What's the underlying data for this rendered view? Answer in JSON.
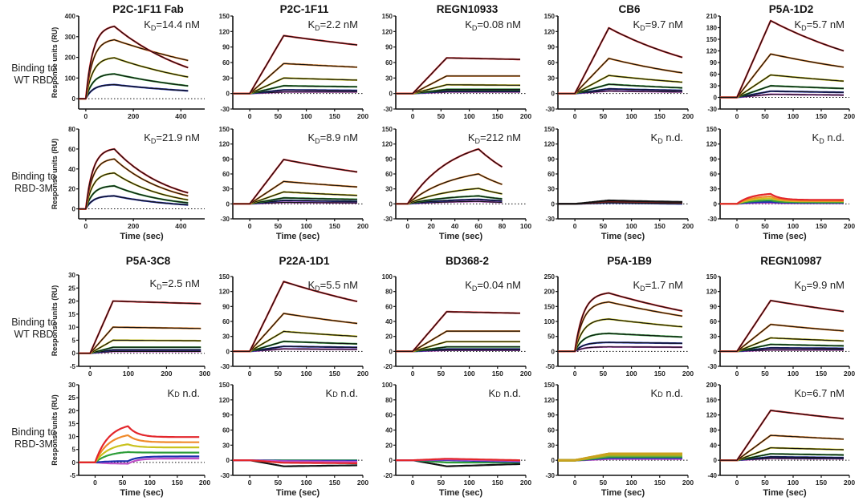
{
  "figure": {
    "row_labels": [
      {
        "lines": [
          "Binding to",
          "WT RBD"
        ]
      },
      {
        "lines": [
          "Binding to",
          "RBD-3M"
        ]
      },
      {
        "lines": [
          "Binding to",
          "WT RBD"
        ]
      },
      {
        "lines": [
          "Binding to",
          "RBD-3M"
        ]
      }
    ],
    "ylabel": "Response units (RU)",
    "xlabel": "Time (sec)",
    "kd_prefix": "K",
    "kd_subscript": "D",
    "series_colors": [
      "#e3262b",
      "#f08a2a",
      "#c9c21e",
      "#2e9e3a",
      "#1f2fb0",
      "#c050c8"
    ],
    "fit_color": "#111111"
  },
  "chart_data": [
    {
      "type": "line",
      "title": "P2C-1F11 Fab",
      "row": "WT RBD",
      "kd": "=14.4 nM",
      "xlim": [
        -30,
        500
      ],
      "ylim": [
        -50,
        400
      ],
      "xticks": [
        0,
        200,
        400
      ],
      "yticks": [
        0,
        100,
        200,
        300,
        400
      ],
      "assoc_end": 120,
      "end": 430,
      "shape": "exp",
      "kinetic": "fast",
      "peaks": [
        350,
        285,
        198,
        120,
        68
      ],
      "ends": [
        150,
        185,
        105,
        62,
        38
      ],
      "fit": true
    },
    {
      "type": "line",
      "title": "P2C-1F11",
      "row": "WT RBD",
      "kd": "=2.2 nM",
      "xlim": [
        -30,
        200
      ],
      "ylim": [
        -30,
        150
      ],
      "xticks": [
        0,
        50,
        100,
        150,
        200
      ],
      "yticks": [
        -30,
        0,
        30,
        60,
        90,
        120,
        150
      ],
      "assoc_end": 60,
      "end": 190,
      "shape": "linear",
      "peaks": [
        112,
        58,
        30,
        15,
        7,
        3
      ],
      "ends": [
        94,
        51,
        26,
        13,
        6,
        3
      ],
      "fit": true
    },
    {
      "type": "line",
      "title": "REGN10933",
      "row": "WT RBD",
      "kd": "=0.08 nM",
      "xlim": [
        -30,
        200
      ],
      "ylim": [
        -30,
        150
      ],
      "xticks": [
        0,
        50,
        100,
        150,
        200
      ],
      "yticks": [
        -30,
        0,
        30,
        60,
        90,
        120,
        150
      ],
      "assoc_end": 60,
      "end": 190,
      "shape": "linear",
      "peaks": [
        69,
        34,
        17,
        8,
        5,
        3
      ],
      "ends": [
        66,
        34,
        16,
        8,
        5,
        3
      ],
      "fit": true
    },
    {
      "type": "line",
      "title": "CB6",
      "row": "WT RBD",
      "kd": "=9.7 nM",
      "xlim": [
        -30,
        200
      ],
      "ylim": [
        -30,
        150
      ],
      "xticks": [
        0,
        50,
        100,
        150,
        200
      ],
      "yticks": [
        -30,
        0,
        30,
        60,
        90,
        120,
        150
      ],
      "assoc_end": 60,
      "end": 190,
      "shape": "linear",
      "peaks": [
        127,
        68,
        35,
        18,
        9,
        5
      ],
      "ends": [
        70,
        40,
        22,
        11,
        6,
        3
      ],
      "fit": true
    },
    {
      "type": "line",
      "title": "P5A-1D2",
      "row": "WT RBD",
      "kd": "=5.7 nM",
      "xlim": [
        -30,
        200
      ],
      "ylim": [
        -30,
        210
      ],
      "xticks": [
        0,
        50,
        100,
        150,
        200
      ],
      "yticks": [
        -30,
        0,
        30,
        60,
        90,
        120,
        150,
        180,
        210
      ],
      "assoc_end": 60,
      "end": 190,
      "shape": "linear",
      "peaks": [
        198,
        112,
        58,
        30,
        16,
        8
      ],
      "ends": [
        120,
        78,
        42,
        23,
        13,
        6
      ],
      "fit": true
    },
    {
      "type": "line",
      "title": "P2C-1F11 Fab",
      "row": "RBD-3M",
      "kd": "=21.9 nM",
      "xlim": [
        -30,
        500
      ],
      "ylim": [
        -10,
        80
      ],
      "xticks": [
        0,
        200,
        400
      ],
      "yticks": [
        0,
        20,
        40,
        60,
        80
      ],
      "assoc_end": 120,
      "end": 430,
      "shape": "exp",
      "kinetic": "fast",
      "peaks": [
        60,
        50,
        36,
        23,
        13
      ],
      "ends": [
        16,
        13,
        9,
        6,
        4
      ],
      "fit": true,
      "hide_title": true
    },
    {
      "type": "line",
      "title": "P2C-1F11",
      "row": "RBD-3M",
      "kd": "=8.9 nM",
      "xlim": [
        -30,
        200
      ],
      "ylim": [
        -30,
        150
      ],
      "xticks": [
        0,
        50,
        100,
        150,
        200
      ],
      "yticks": [
        -30,
        0,
        30,
        60,
        90,
        120,
        150
      ],
      "assoc_end": 60,
      "end": 190,
      "shape": "linear",
      "peaks": [
        89,
        45,
        24,
        12,
        7,
        3
      ],
      "ends": [
        64,
        34,
        17,
        9,
        5,
        2
      ],
      "fit": true,
      "hide_title": true
    },
    {
      "type": "line",
      "title": "REGN10933",
      "row": "RBD-3M",
      "kd": "=212 nM",
      "xlim": [
        -10,
        100
      ],
      "ylim": [
        -30,
        150
      ],
      "xticks": [
        0,
        20,
        40,
        60,
        80,
        100
      ],
      "yticks": [
        -30,
        0,
        30,
        60,
        90,
        120,
        150
      ],
      "assoc_end": 60,
      "end": 80,
      "shape": "exp",
      "kinetic": "slow",
      "peaks": [
        110,
        60,
        31,
        16,
        9,
        5
      ],
      "ends": [
        74,
        39,
        20,
        10,
        6,
        3
      ],
      "fit": true,
      "hide_title": true
    },
    {
      "type": "line",
      "title": "CB6",
      "row": "RBD-3M",
      "kd": " n.d.",
      "xlim": [
        -30,
        200
      ],
      "ylim": [
        -30,
        150
      ],
      "xticks": [
        0,
        50,
        100,
        150,
        200
      ],
      "yticks": [
        -30,
        0,
        30,
        60,
        90,
        120,
        150
      ],
      "assoc_end": 60,
      "end": 190,
      "shape": "linear",
      "peaks": [
        7,
        5,
        3,
        2
      ],
      "ends": [
        4,
        3,
        1,
        0
      ],
      "fit": false,
      "mono": true,
      "hide_title": true
    },
    {
      "type": "line",
      "title": "P5A-1D2",
      "row": "RBD-3M",
      "kd": " n.d.",
      "xlim": [
        -30,
        200
      ],
      "ylim": [
        -30,
        150
      ],
      "xticks": [
        0,
        50,
        100,
        150,
        200
      ],
      "yticks": [
        -30,
        0,
        30,
        60,
        90,
        120,
        150
      ],
      "assoc_end": 60,
      "end": 190,
      "shape": "exp",
      "kinetic": "mid",
      "peaks": [
        20,
        15,
        11,
        7,
        4,
        2
      ],
      "ends": [
        8,
        6,
        5,
        3,
        2,
        1
      ],
      "fit": false,
      "hide_title": true
    },
    {
      "type": "line",
      "title": "P5A-3C8",
      "row": "WT RBD",
      "kd": "=2.5 nM",
      "xlim": [
        -30,
        300
      ],
      "ylim": [
        -5,
        30
      ],
      "xticks": [
        0,
        100,
        200,
        300
      ],
      "yticks": [
        -5,
        0,
        5,
        10,
        15,
        20,
        25,
        30
      ],
      "assoc_end": 60,
      "end": 290,
      "shape": "linear",
      "peaks": [
        20,
        10,
        5,
        2.3,
        1.3,
        0.7
      ],
      "ends": [
        19,
        9.5,
        4.8,
        2.3,
        1.3,
        0.7
      ],
      "fit": true
    },
    {
      "type": "line",
      "title": "P22A-1D1",
      "row": "WT RBD",
      "kd": "=5.5 nM",
      "xlim": [
        -30,
        200
      ],
      "ylim": [
        -30,
        150
      ],
      "xticks": [
        0,
        50,
        100,
        150,
        200
      ],
      "yticks": [
        -30,
        0,
        30,
        60,
        90,
        120,
        150
      ],
      "assoc_end": 60,
      "end": 190,
      "shape": "linear",
      "peaks": [
        140,
        76,
        40,
        20,
        10,
        5
      ],
      "ends": [
        100,
        56,
        30,
        15,
        8,
        4
      ],
      "fit": true
    },
    {
      "type": "line",
      "title": "BD368-2",
      "row": "WT RBD",
      "kd": "=0.04 nM",
      "xlim": [
        -30,
        200
      ],
      "ylim": [
        -20,
        100
      ],
      "xticks": [
        0,
        50,
        100,
        150,
        200
      ],
      "yticks": [
        -20,
        0,
        20,
        40,
        60,
        80,
        100
      ],
      "assoc_end": 60,
      "end": 190,
      "shape": "linear",
      "peaks": [
        53,
        27,
        13,
        6,
        3,
        1.5
      ],
      "ends": [
        51,
        27,
        13,
        6,
        3,
        1.5
      ],
      "fit": true
    },
    {
      "type": "line",
      "title": "P5A-1B9",
      "row": "WT RBD",
      "kd": "=1.7 nM",
      "xlim": [
        -30,
        200
      ],
      "ylim": [
        -50,
        250
      ],
      "xticks": [
        0,
        50,
        100,
        150,
        200
      ],
      "yticks": [
        -50,
        0,
        50,
        100,
        150,
        200,
        250
      ],
      "assoc_end": 60,
      "end": 190,
      "shape": "exp",
      "kinetic": "fast",
      "peaks": [
        195,
        165,
        108,
        60,
        30,
        15
      ],
      "ends": [
        135,
        118,
        82,
        48,
        27,
        14
      ],
      "fit": true
    },
    {
      "type": "line",
      "title": "REGN10987",
      "row": "WT RBD",
      "kd": "=9.9 nM",
      "xlim": [
        -30,
        200
      ],
      "ylim": [
        -30,
        150
      ],
      "xticks": [
        0,
        50,
        100,
        150,
        200
      ],
      "yticks": [
        -30,
        0,
        30,
        60,
        90,
        120,
        150
      ],
      "assoc_end": 60,
      "end": 190,
      "shape": "linear",
      "peaks": [
        102,
        54,
        27,
        14,
        7,
        3
      ],
      "ends": [
        80,
        41,
        21,
        11,
        6,
        3
      ],
      "fit": true
    },
    {
      "type": "line",
      "title": "P5A-3C8",
      "row": "RBD-3M",
      "kd": " n.d.",
      "xlim": [
        -30,
        200
      ],
      "ylim": [
        -5,
        30
      ],
      "xticks": [
        0,
        50,
        100,
        150,
        200
      ],
      "yticks": [
        -5,
        0,
        5,
        10,
        15,
        20,
        25,
        30
      ],
      "assoc_end": 60,
      "end": 190,
      "shape": "exp",
      "kinetic": "mid",
      "peaks": [
        14,
        10.5,
        7,
        4,
        0.5,
        -0.5
      ],
      "ends": [
        9.8,
        7.8,
        5.8,
        3.8,
        2.3,
        1.5
      ],
      "fit": false,
      "hide_title": true,
      "kd_plain": true
    },
    {
      "type": "line",
      "title": "P22A-1D1",
      "row": "RBD-3M",
      "kd": " n.d.",
      "xlim": [
        -30,
        200
      ],
      "ylim": [
        -30,
        150
      ],
      "xticks": [
        0,
        50,
        100,
        150,
        200
      ],
      "yticks": [
        -30,
        0,
        30,
        60,
        90,
        120,
        150
      ],
      "assoc_end": 60,
      "end": 190,
      "shape": "linear",
      "peaks": [
        -5,
        -2,
        -1,
        0,
        -12
      ],
      "ends": [
        -6,
        -3,
        -1,
        0,
        -10
      ],
      "fit": false,
      "hide_title": true,
      "kd_plain": true,
      "neg": true
    },
    {
      "type": "line",
      "title": "BD368-2",
      "row": "RBD-3M",
      "kd": " n.d.",
      "xlim": [
        -30,
        200
      ],
      "ylim": [
        -20,
        100
      ],
      "xticks": [
        0,
        50,
        100,
        150,
        200
      ],
      "yticks": [
        -20,
        0,
        20,
        40,
        60,
        80,
        100
      ],
      "assoc_end": 60,
      "end": 190,
      "shape": "linear",
      "peaks": [
        2,
        1,
        0,
        -3,
        -8
      ],
      "ends": [
        0,
        -1,
        -2,
        -3,
        -5
      ],
      "fit": false,
      "hide_title": true,
      "kd_plain": true,
      "neg": true
    },
    {
      "type": "line",
      "title": "P5A-1B9",
      "row": "RBD-3M",
      "kd": " n.d.",
      "xlim": [
        -30,
        200
      ],
      "ylim": [
        -30,
        150
      ],
      "xticks": [
        0,
        50,
        100,
        150,
        200
      ],
      "yticks": [
        -30,
        0,
        30,
        60,
        90,
        120,
        150
      ],
      "assoc_end": 60,
      "end": 190,
      "shape": "linear",
      "peaks": [
        13,
        11,
        9,
        7,
        5,
        3
      ],
      "ends": [
        13,
        11,
        9,
        7,
        5,
        3
      ],
      "fit": false,
      "hide_title": true,
      "kd_plain": true,
      "band": true
    },
    {
      "type": "line",
      "title": "REGN10987",
      "row": "RBD-3M",
      "kd": "=6.7 nM",
      "xlim": [
        -30,
        200
      ],
      "ylim": [
        -40,
        200
      ],
      "xticks": [
        0,
        50,
        100,
        150,
        200
      ],
      "yticks": [
        -40,
        0,
        40,
        80,
        120,
        160,
        200
      ],
      "assoc_end": 60,
      "end": 190,
      "shape": "linear",
      "peaks": [
        132,
        66,
        33,
        17,
        9,
        5
      ],
      "ends": [
        110,
        56,
        28,
        14,
        7,
        4
      ],
      "fit": true,
      "hide_title": true,
      "kd_plain": true
    }
  ]
}
